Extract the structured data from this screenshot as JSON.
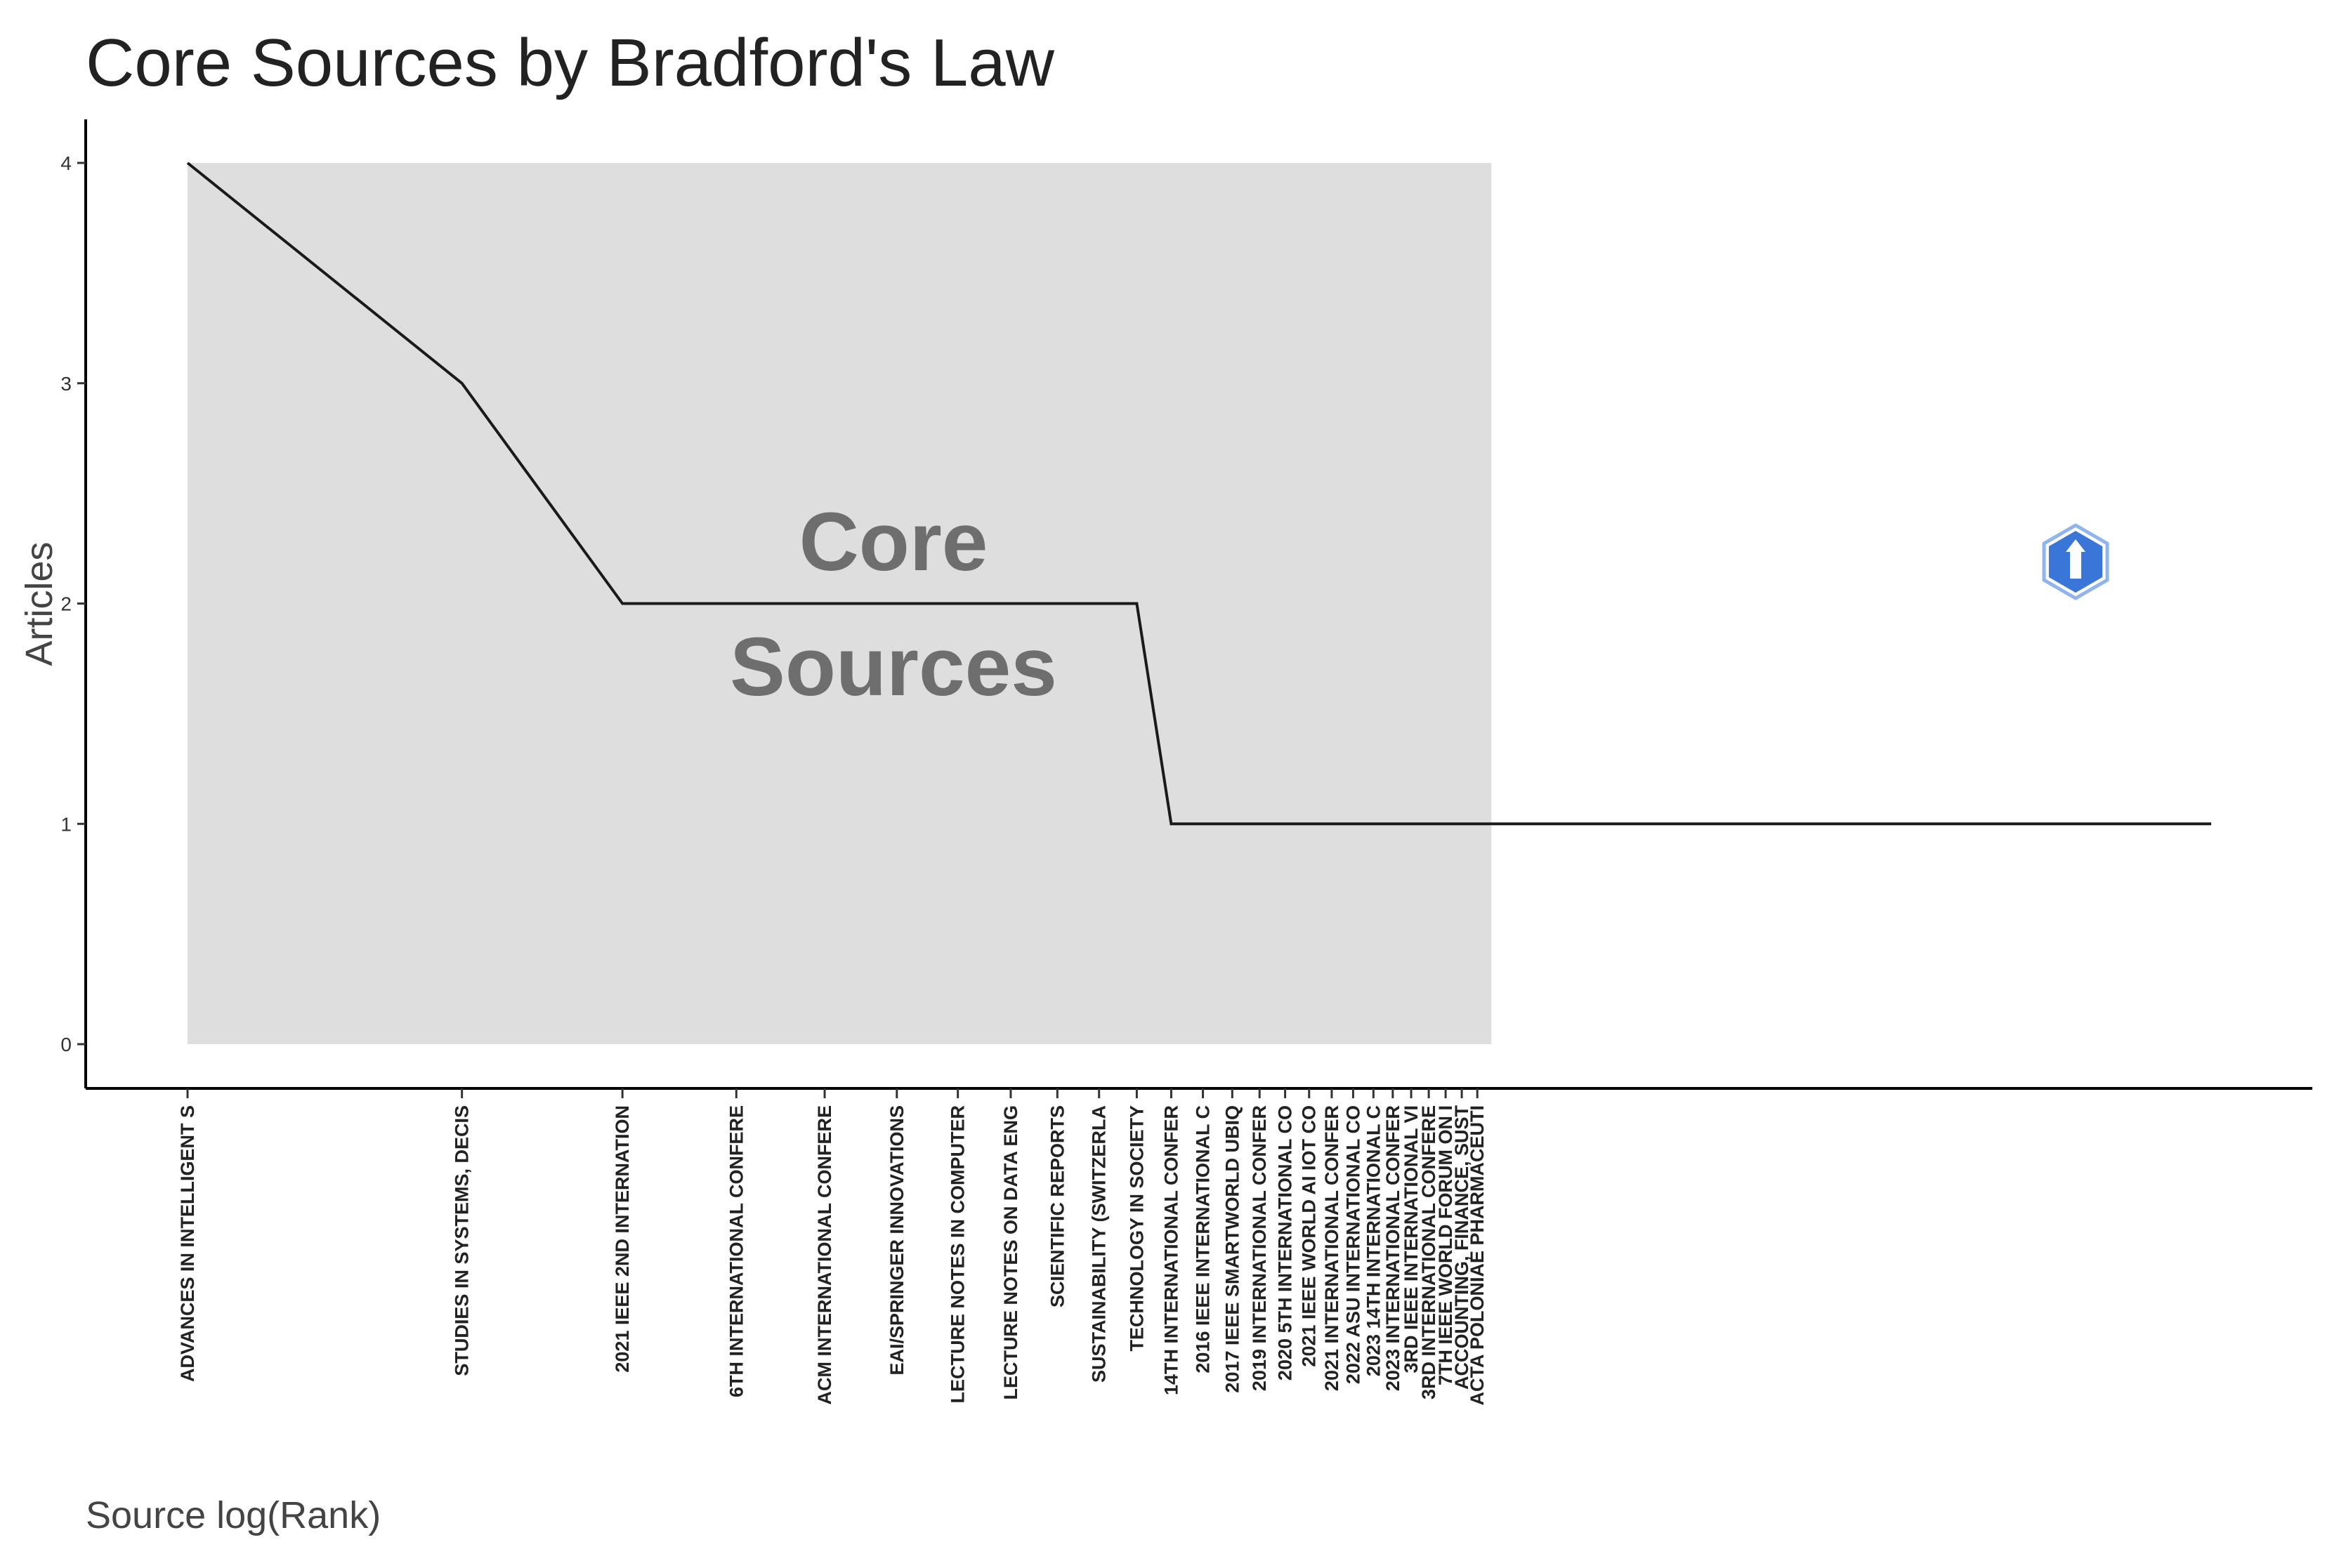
{
  "chart_data": {
    "type": "line",
    "title": "Core Sources by Bradford's Law",
    "xlabel": "Source log(Rank)",
    "ylabel": "Articles",
    "ylim": [
      0,
      4
    ],
    "yticks": [
      "0",
      "1",
      "2",
      "3",
      "4"
    ],
    "x_scale": "log",
    "grid": false,
    "core_zone": {
      "label_line1": "Core",
      "label_line2": "Sources",
      "rank_range": [
        1,
        26
      ],
      "fill": "#dedede"
    },
    "line_color": "#1a1a1a",
    "series": [
      {
        "points": [
          {
            "rank": 1,
            "source": "ADVANCES IN INTELLIGENT S",
            "articles": 4
          },
          {
            "rank": 2,
            "source": "STUDIES IN SYSTEMS, DECIS",
            "articles": 3
          },
          {
            "rank": 3,
            "source": "2021 IEEE 2ND INTERNATION",
            "articles": 2
          },
          {
            "rank": 4,
            "source": "6TH INTERNATIONAL CONFERE",
            "articles": 2
          },
          {
            "rank": 5,
            "source": "ACM INTERNATIONAL CONFERE",
            "articles": 2
          },
          {
            "rank": 6,
            "source": "EAI/SPRINGER INNOVATIONS",
            "articles": 2
          },
          {
            "rank": 7,
            "source": "LECTURE NOTES IN COMPUTER",
            "articles": 2
          },
          {
            "rank": 8,
            "source": "LECTURE NOTES ON DATA ENG",
            "articles": 2
          },
          {
            "rank": 9,
            "source": "SCIENTIFIC REPORTS",
            "articles": 2
          },
          {
            "rank": 10,
            "source": "SUSTAINABILITY (SWITZERLA",
            "articles": 2
          },
          {
            "rank": 11,
            "source": "TECHNOLOGY IN SOCIETY",
            "articles": 2
          },
          {
            "rank": 12,
            "source": "14TH INTERNATIONAL CONFER",
            "articles": 1
          },
          {
            "rank": 13,
            "source": "2016 IEEE INTERNATIONAL C",
            "articles": 1
          },
          {
            "rank": 14,
            "source": "2017 IEEE SMARTWORLD UBIQ",
            "articles": 1
          },
          {
            "rank": 15,
            "source": "2019 INTERNATIONAL CONFER",
            "articles": 1
          },
          {
            "rank": 16,
            "source": "2020 5TH INTERNATIONAL CO",
            "articles": 1
          },
          {
            "rank": 17,
            "source": "2021 IEEE WORLD AI IOT CO",
            "articles": 1
          },
          {
            "rank": 18,
            "source": "2021 INTERNATIONAL CONFER",
            "articles": 1
          },
          {
            "rank": 19,
            "source": "2022 ASU INTERNATIONAL CO",
            "articles": 1
          },
          {
            "rank": 20,
            "source": "2023 14TH INTERNATIONAL C",
            "articles": 1
          },
          {
            "rank": 21,
            "source": "2023 INTERNATIONAL CONFER",
            "articles": 1
          },
          {
            "rank": 22,
            "source": "3RD IEEE INTERNATIONAL VI",
            "articles": 1
          },
          {
            "rank": 23,
            "source": "3RD INTERNATIONAL CONFERE",
            "articles": 1
          },
          {
            "rank": 24,
            "source": "7TH IEEE WORLD FORUM ON I",
            "articles": 1
          },
          {
            "rank": 25,
            "source": "ACCOUNTING, FINANCE, SUST",
            "articles": 1
          },
          {
            "rank": 26,
            "source": "ACTA POLONIAE PHARMACEUTI",
            "articles": 1
          },
          {
            "rank": 166,
            "source": "",
            "articles": 1
          }
        ]
      }
    ]
  },
  "watermark": {
    "icon": "lighthouse-shield-icon",
    "color": "#3a76d8"
  }
}
